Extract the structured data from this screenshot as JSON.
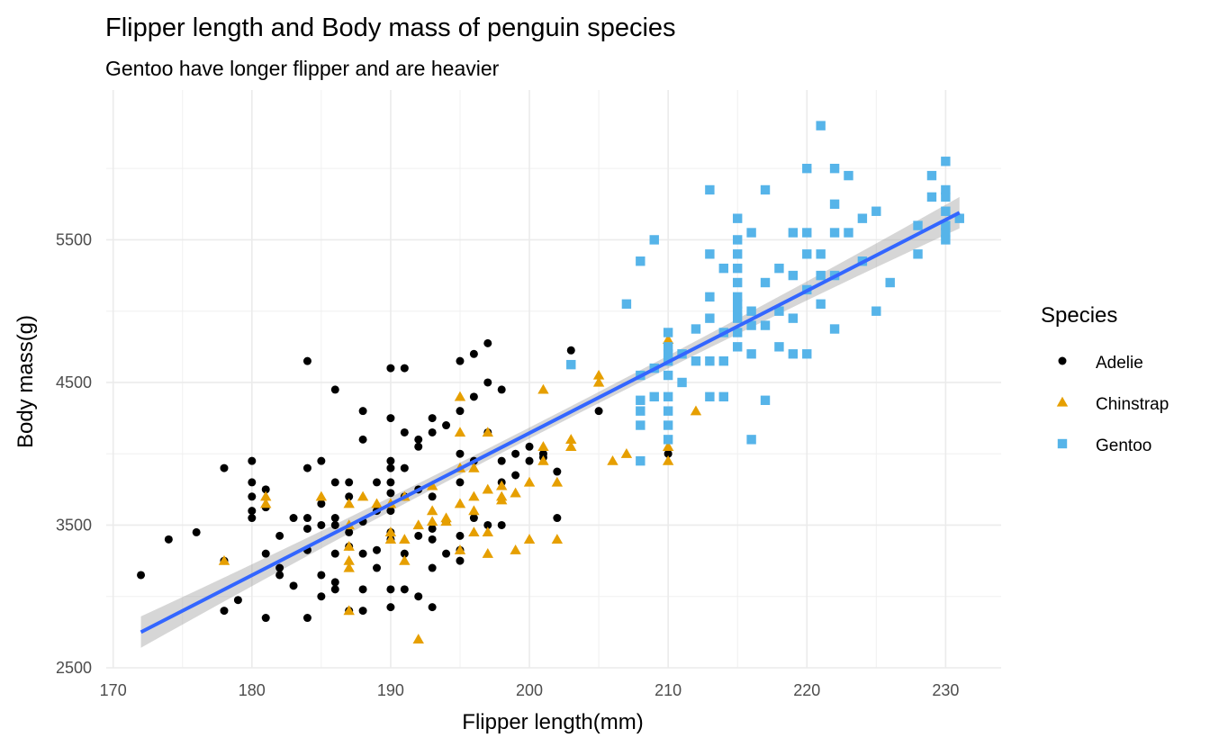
{
  "chart_data": {
    "type": "scatter",
    "title": "Flipper length and Body mass of penguin species",
    "subtitle": "Gentoo have longer flipper and are heavier",
    "xlabel": "Flipper length(mm)",
    "ylabel": "Body mass(g)",
    "xlim": [
      169.5,
      234
    ],
    "ylim": [
      2500,
      6550
    ],
    "x_ticks": [
      170,
      180,
      190,
      200,
      210,
      220,
      230
    ],
    "y_ticks": [
      2500,
      3500,
      4500,
      5500
    ],
    "grid": true,
    "legend": {
      "title": "Species",
      "position": "right"
    },
    "trend_line": {
      "x": [
        172,
        231
      ],
      "y": [
        2750,
        5690
      ],
      "band": 110,
      "color": "#3366FF"
    },
    "series": [
      {
        "name": "Adelie",
        "marker": "circle",
        "color": "#000000",
        "points": [
          [
            172,
            3150
          ],
          [
            174,
            3400
          ],
          [
            176,
            3450
          ],
          [
            178,
            3900
          ],
          [
            178,
            2900
          ],
          [
            178,
            3250
          ],
          [
            179,
            2975
          ],
          [
            180,
            3950
          ],
          [
            180,
            3800
          ],
          [
            180,
            3700
          ],
          [
            180,
            3600
          ],
          [
            180,
            3550
          ],
          [
            181,
            3300
          ],
          [
            181,
            2850
          ],
          [
            181,
            3750
          ],
          [
            181,
            3625
          ],
          [
            182,
            3425
          ],
          [
            182,
            3200
          ],
          [
            182,
            3150
          ],
          [
            183,
            3075
          ],
          [
            183,
            3550
          ],
          [
            184,
            4650
          ],
          [
            184,
            3900
          ],
          [
            184,
            3550
          ],
          [
            184,
            3475
          ],
          [
            184,
            3325
          ],
          [
            184,
            2850
          ],
          [
            185,
            3950
          ],
          [
            185,
            3650
          ],
          [
            185,
            3150
          ],
          [
            185,
            3000
          ],
          [
            185,
            3500
          ],
          [
            186,
            4450
          ],
          [
            186,
            3800
          ],
          [
            186,
            3550
          ],
          [
            186,
            3500
          ],
          [
            186,
            3300
          ],
          [
            186,
            3100
          ],
          [
            186,
            3050
          ],
          [
            187,
            3800
          ],
          [
            187,
            3700
          ],
          [
            187,
            3450
          ],
          [
            187,
            3350
          ],
          [
            187,
            2900
          ],
          [
            188,
            4300
          ],
          [
            188,
            4100
          ],
          [
            188,
            3525
          ],
          [
            188,
            3300
          ],
          [
            188,
            3050
          ],
          [
            188,
            2900
          ],
          [
            189,
            3800
          ],
          [
            189,
            3600
          ],
          [
            189,
            3325
          ],
          [
            189,
            3200
          ],
          [
            190,
            4600
          ],
          [
            190,
            4250
          ],
          [
            190,
            3950
          ],
          [
            190,
            3900
          ],
          [
            190,
            3800
          ],
          [
            190,
            3725
          ],
          [
            190,
            3600
          ],
          [
            190,
            3450
          ],
          [
            190,
            3400
          ],
          [
            190,
            3050
          ],
          [
            190,
            2925
          ],
          [
            191,
            4600
          ],
          [
            191,
            4150
          ],
          [
            191,
            3900
          ],
          [
            191,
            3700
          ],
          [
            191,
            3300
          ],
          [
            191,
            3050
          ],
          [
            192,
            4100
          ],
          [
            192,
            4050
          ],
          [
            192,
            3750
          ],
          [
            192,
            3425
          ],
          [
            192,
            3000
          ],
          [
            193,
            4250
          ],
          [
            193,
            4150
          ],
          [
            193,
            3700
          ],
          [
            193,
            3475
          ],
          [
            193,
            3400
          ],
          [
            193,
            3200
          ],
          [
            193,
            2925
          ],
          [
            194,
            4200
          ],
          [
            194,
            3525
          ],
          [
            194,
            3300
          ],
          [
            195,
            4650
          ],
          [
            195,
            4300
          ],
          [
            195,
            4000
          ],
          [
            195,
            3800
          ],
          [
            195,
            3425
          ],
          [
            195,
            3325
          ],
          [
            195,
            3250
          ],
          [
            196,
            4700
          ],
          [
            196,
            4400
          ],
          [
            196,
            3950
          ],
          [
            196,
            3550
          ],
          [
            197,
            4775
          ],
          [
            197,
            4500
          ],
          [
            197,
            4150
          ],
          [
            197,
            3500
          ],
          [
            198,
            4450
          ],
          [
            198,
            3950
          ],
          [
            198,
            3800
          ],
          [
            198,
            3500
          ],
          [
            199,
            4000
          ],
          [
            199,
            3850
          ],
          [
            200,
            4050
          ],
          [
            200,
            3950
          ],
          [
            201,
            4000
          ],
          [
            201,
            3975
          ],
          [
            202,
            3875
          ],
          [
            202,
            3550
          ],
          [
            203,
            4725
          ],
          [
            205,
            4300
          ],
          [
            208,
            4550
          ],
          [
            210,
            4000
          ]
        ]
      },
      {
        "name": "Chinstrap",
        "marker": "triangle",
        "color": "#E69F00",
        "points": [
          [
            178,
            3250
          ],
          [
            181,
            3700
          ],
          [
            181,
            3650
          ],
          [
            185,
            3700
          ],
          [
            187,
            3650
          ],
          [
            187,
            3500
          ],
          [
            187,
            3350
          ],
          [
            187,
            3250
          ],
          [
            187,
            3200
          ],
          [
            187,
            2900
          ],
          [
            188,
            3700
          ],
          [
            189,
            3650
          ],
          [
            190,
            3450
          ],
          [
            190,
            3400
          ],
          [
            190,
            3650
          ],
          [
            191,
            3400
          ],
          [
            191,
            3250
          ],
          [
            191,
            3700
          ],
          [
            192,
            2700
          ],
          [
            192,
            3500
          ],
          [
            193,
            3775
          ],
          [
            193,
            3600
          ],
          [
            193,
            3525
          ],
          [
            194,
            3550
          ],
          [
            194,
            3525
          ],
          [
            195,
            4400
          ],
          [
            195,
            4150
          ],
          [
            195,
            3900
          ],
          [
            195,
            3650
          ],
          [
            195,
            3325
          ],
          [
            196,
            3700
          ],
          [
            196,
            3600
          ],
          [
            196,
            3450
          ],
          [
            196,
            3900
          ],
          [
            197,
            4150
          ],
          [
            197,
            3750
          ],
          [
            197,
            3450
          ],
          [
            197,
            3300
          ],
          [
            198,
            3775
          ],
          [
            198,
            3700
          ],
          [
            198,
            3675
          ],
          [
            199,
            3725
          ],
          [
            199,
            3325
          ],
          [
            200,
            3800
          ],
          [
            200,
            3400
          ],
          [
            201,
            4450
          ],
          [
            201,
            4050
          ],
          [
            201,
            3950
          ],
          [
            202,
            3800
          ],
          [
            202,
            3400
          ],
          [
            203,
            4100
          ],
          [
            203,
            4050
          ],
          [
            205,
            4550
          ],
          [
            205,
            4500
          ],
          [
            206,
            3950
          ],
          [
            207,
            4000
          ],
          [
            210,
            4800
          ],
          [
            210,
            4050
          ],
          [
            210,
            3950
          ],
          [
            212,
            4300
          ]
        ]
      },
      {
        "name": "Gentoo",
        "marker": "square",
        "color": "#56B4E9",
        "points": [
          [
            203,
            4625
          ],
          [
            207,
            5050
          ],
          [
            208,
            5350
          ],
          [
            208,
            4550
          ],
          [
            208,
            4375
          ],
          [
            208,
            4300
          ],
          [
            208,
            4200
          ],
          [
            208,
            3950
          ],
          [
            209,
            5500
          ],
          [
            209,
            4400
          ],
          [
            209,
            4600
          ],
          [
            210,
            4850
          ],
          [
            210,
            4750
          ],
          [
            210,
            4700
          ],
          [
            210,
            4650
          ],
          [
            210,
            4550
          ],
          [
            210,
            4400
          ],
          [
            210,
            4300
          ],
          [
            210,
            4200
          ],
          [
            210,
            4100
          ],
          [
            211,
            4500
          ],
          [
            211,
            4700
          ],
          [
            212,
            4875
          ],
          [
            212,
            4650
          ],
          [
            213,
            5400
          ],
          [
            213,
            5850
          ],
          [
            213,
            5100
          ],
          [
            213,
            4950
          ],
          [
            213,
            4650
          ],
          [
            213,
            4400
          ],
          [
            214,
            5300
          ],
          [
            214,
            4850
          ],
          [
            214,
            4650
          ],
          [
            214,
            4400
          ],
          [
            215,
            5650
          ],
          [
            215,
            5500
          ],
          [
            215,
            5400
          ],
          [
            215,
            5300
          ],
          [
            215,
            5200
          ],
          [
            215,
            5100
          ],
          [
            215,
            5050
          ],
          [
            215,
            5000
          ],
          [
            215,
            4950
          ],
          [
            215,
            4850
          ],
          [
            215,
            4750
          ],
          [
            216,
            5550
          ],
          [
            216,
            5000
          ],
          [
            216,
            4900
          ],
          [
            216,
            4700
          ],
          [
            216,
            4100
          ],
          [
            217,
            5850
          ],
          [
            217,
            5200
          ],
          [
            217,
            4900
          ],
          [
            217,
            4375
          ],
          [
            218,
            5300
          ],
          [
            218,
            5000
          ],
          [
            218,
            4750
          ],
          [
            219,
            5550
          ],
          [
            219,
            5250
          ],
          [
            219,
            4950
          ],
          [
            219,
            4700
          ],
          [
            220,
            6000
          ],
          [
            220,
            5550
          ],
          [
            220,
            5400
          ],
          [
            220,
            5150
          ],
          [
            220,
            4700
          ],
          [
            221,
            6300
          ],
          [
            221,
            5400
          ],
          [
            221,
            5250
          ],
          [
            221,
            5050
          ],
          [
            222,
            6000
          ],
          [
            222,
            5750
          ],
          [
            222,
            5550
          ],
          [
            222,
            5250
          ],
          [
            222,
            4875
          ],
          [
            223,
            5950
          ],
          [
            223,
            5550
          ],
          [
            224,
            5650
          ],
          [
            224,
            5350
          ],
          [
            225,
            5700
          ],
          [
            225,
            5000
          ],
          [
            226,
            5200
          ],
          [
            228,
            5600
          ],
          [
            228,
            5400
          ],
          [
            229,
            5950
          ],
          [
            229,
            5800
          ],
          [
            230,
            6050
          ],
          [
            230,
            5850
          ],
          [
            230,
            5800
          ],
          [
            230,
            5700
          ],
          [
            230,
            5600
          ],
          [
            230,
            5550
          ],
          [
            230,
            5500
          ],
          [
            231,
            5650
          ]
        ]
      }
    ]
  }
}
